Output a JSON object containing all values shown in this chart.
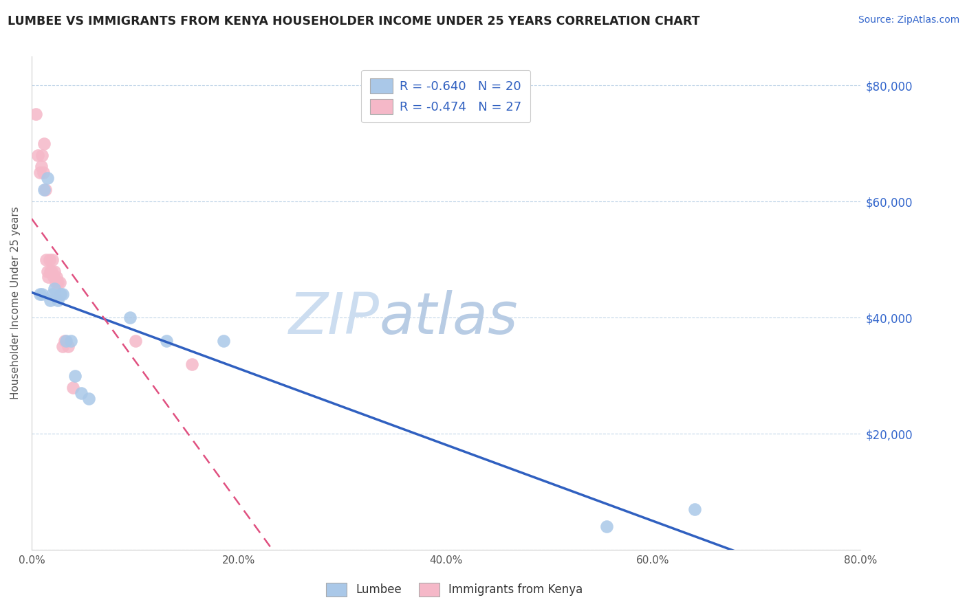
{
  "title": "LUMBEE VS IMMIGRANTS FROM KENYA HOUSEHOLDER INCOME UNDER 25 YEARS CORRELATION CHART",
  "source": "Source: ZipAtlas.com",
  "ylabel": "Householder Income Under 25 years",
  "xlim": [
    0.0,
    0.8
  ],
  "ylim": [
    0,
    85000
  ],
  "yticks": [
    0,
    20000,
    40000,
    60000,
    80000
  ],
  "ytick_labels": [
    "",
    "$20,000",
    "$40,000",
    "$60,000",
    "$80,000"
  ],
  "xticks": [
    0.0,
    0.2,
    0.4,
    0.6,
    0.8
  ],
  "xtick_labels": [
    "0.0%",
    "20.0%",
    "40.0%",
    "60.0%",
    "80.0%"
  ],
  "lumbee_color": "#aac8e8",
  "kenya_color": "#f5b8c8",
  "lumbee_line_color": "#3060c0",
  "kenya_line_color": "#e05080",
  "watermark_zip_color": "#c8ddf0",
  "watermark_atlas_color": "#b0cceb",
  "lumbee_R": -0.64,
  "lumbee_N": 20,
  "kenya_R": -0.474,
  "kenya_N": 27,
  "legend_text_color": "#3060c0",
  "legend_R_color": "#3060c0",
  "lumbee_x": [
    0.008,
    0.01,
    0.012,
    0.015,
    0.018,
    0.02,
    0.022,
    0.025,
    0.028,
    0.03,
    0.033,
    0.038,
    0.042,
    0.048,
    0.055,
    0.095,
    0.13,
    0.185,
    0.555,
    0.64
  ],
  "lumbee_y": [
    44000,
    44000,
    62000,
    64000,
    43000,
    44000,
    45000,
    43000,
    44000,
    44000,
    36000,
    36000,
    30000,
    27000,
    26000,
    40000,
    36000,
    36000,
    4000,
    7000
  ],
  "kenya_x": [
    0.004,
    0.006,
    0.008,
    0.009,
    0.01,
    0.011,
    0.012,
    0.013,
    0.014,
    0.015,
    0.016,
    0.017,
    0.018,
    0.019,
    0.02,
    0.021,
    0.022,
    0.023,
    0.024,
    0.025,
    0.027,
    0.03,
    0.032,
    0.035,
    0.04,
    0.1,
    0.155
  ],
  "kenya_y": [
    75000,
    68000,
    65000,
    66000,
    68000,
    65000,
    70000,
    62000,
    50000,
    48000,
    47000,
    50000,
    48000,
    48000,
    50000,
    47000,
    48000,
    46000,
    47000,
    46000,
    46000,
    35000,
    36000,
    35000,
    28000,
    36000,
    32000
  ],
  "bottom_legend_labels": [
    "Lumbee",
    "Immigrants from Kenya"
  ]
}
